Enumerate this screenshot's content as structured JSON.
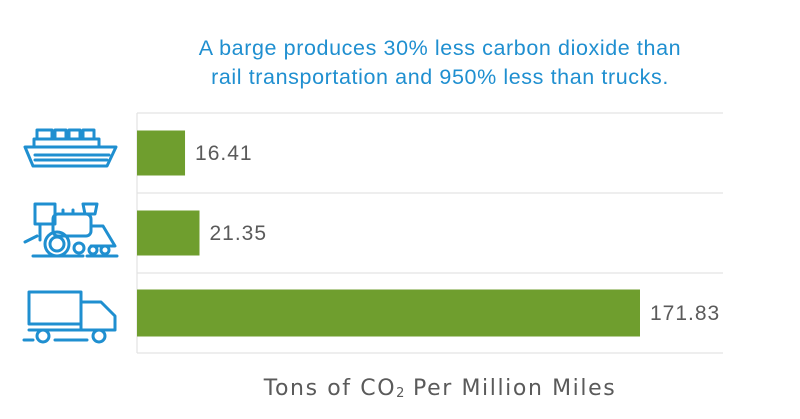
{
  "chart_data": {
    "type": "bar",
    "orientation": "horizontal",
    "title_lines": [
      "A barge produces 30% less carbon dioxide than",
      "rail transportation and 950% less than trucks."
    ],
    "xlabel": {
      "prefix": "Tons of CO",
      "subscript": "2",
      "suffix": " Per Million Miles"
    },
    "ylabel": "",
    "categories": [
      "Barge",
      "Rail",
      "Truck"
    ],
    "category_icons": [
      "barge-icon",
      "train-icon",
      "truck-icon"
    ],
    "values": [
      16.41,
      21.35,
      171.83
    ],
    "value_labels": [
      "16.41",
      "21.35",
      "171.83"
    ],
    "xlim": [
      0,
      171.83
    ],
    "grid": true,
    "legend": "none",
    "colors": {
      "bar": "#6f9e2e",
      "icon": "#1f8fd0",
      "title": "#1f8fd0",
      "labels": "#5a5a5a",
      "grid": "#e3e3e3"
    }
  }
}
